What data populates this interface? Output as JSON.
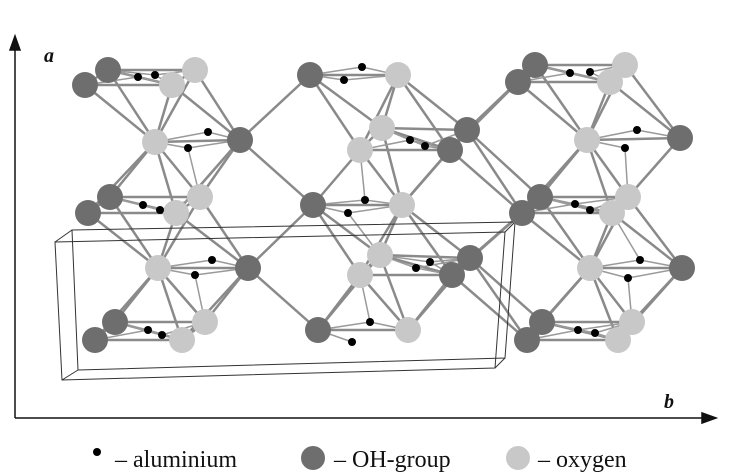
{
  "axes": {
    "vertical": "a",
    "horizontal": "b"
  },
  "legend": {
    "items": [
      {
        "label": "– aluminium"
      },
      {
        "label": "– OH-group"
      },
      {
        "label": "– oxygen"
      }
    ]
  }
}
